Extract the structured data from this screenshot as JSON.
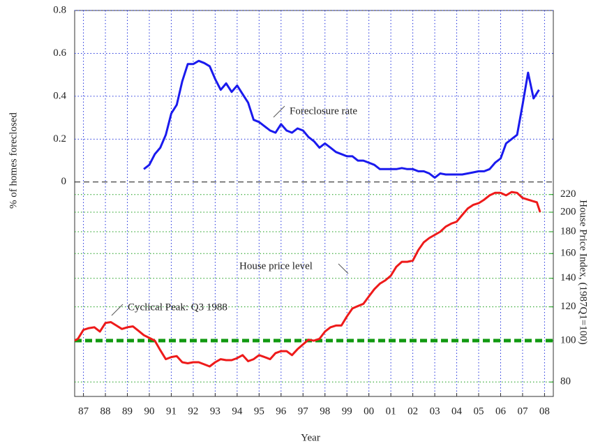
{
  "chart_data": {
    "type": "line",
    "xlabel": "Year",
    "ylabel": "% of homes foreclosed",
    "y2label": "House Price Index, (1987Q1=100)",
    "xlim": [
      1986.6,
      2008.4
    ],
    "xticks": [
      {
        "value": 1987,
        "label": "87"
      },
      {
        "value": 1988,
        "label": "88"
      },
      {
        "value": 1989,
        "label": "89"
      },
      {
        "value": 1990,
        "label": "90"
      },
      {
        "value": 1991,
        "label": "91"
      },
      {
        "value": 1992,
        "label": "92"
      },
      {
        "value": 1993,
        "label": "93"
      },
      {
        "value": 1994,
        "label": "94"
      },
      {
        "value": 1995,
        "label": "95"
      },
      {
        "value": 1996,
        "label": "96"
      },
      {
        "value": 1997,
        "label": "97"
      },
      {
        "value": 1998,
        "label": "98"
      },
      {
        "value": 1999,
        "label": "99"
      },
      {
        "value": 2000,
        "label": "00"
      },
      {
        "value": 2001,
        "label": "01"
      },
      {
        "value": 2002,
        "label": "02"
      },
      {
        "value": 2003,
        "label": "03"
      },
      {
        "value": 2004,
        "label": "04"
      },
      {
        "value": 2005,
        "label": "05"
      },
      {
        "value": 2006,
        "label": "06"
      },
      {
        "value": 2007,
        "label": "07"
      },
      {
        "value": 2008,
        "label": "08"
      }
    ],
    "ylim": [
      -1,
      0.8
    ],
    "yticks": [
      0,
      0.2,
      0.4,
      0.6,
      0.8
    ],
    "y_reference": 0,
    "y2lim": [
      74,
      594
    ],
    "y2ticks": [
      80,
      100,
      120,
      140,
      160,
      180,
      200,
      220
    ],
    "y2_log": true,
    "y2_reference": 100,
    "grid": true,
    "annotations": [
      "Foreclosure rate",
      "House price level",
      "Cyclical Peak: Q3 1988"
    ],
    "series": [
      {
        "name": "Foreclosure rate",
        "color": "#1a1aee",
        "axis": "y",
        "x": [
          1989.75,
          1990,
          1990.25,
          1990.5,
          1990.75,
          1991,
          1991.25,
          1991.5,
          1991.75,
          1992,
          1992.25,
          1992.5,
          1992.75,
          1993,
          1993.25,
          1993.5,
          1993.75,
          1994,
          1994.25,
          1994.5,
          1994.75,
          1995,
          1995.25,
          1995.5,
          1995.75,
          1996,
          1996.25,
          1996.5,
          1996.75,
          1997,
          1997.25,
          1997.5,
          1997.75,
          1998,
          1998.25,
          1998.5,
          1998.75,
          1999,
          1999.25,
          1999.5,
          1999.75,
          2000,
          2000.25,
          2000.5,
          2000.75,
          2001,
          2001.25,
          2001.5,
          2001.75,
          2002,
          2002.25,
          2002.5,
          2002.75,
          2003,
          2003.25,
          2003.5,
          2003.75,
          2004,
          2004.25,
          2004.5,
          2004.75,
          2005,
          2005.25,
          2005.5,
          2005.75,
          2006,
          2006.25,
          2006.5,
          2006.75,
          2007,
          2007.25,
          2007.5,
          2007.75
        ],
        "values": [
          0.06,
          0.08,
          0.13,
          0.16,
          0.22,
          0.32,
          0.36,
          0.47,
          0.55,
          0.55,
          0.565,
          0.555,
          0.54,
          0.48,
          0.43,
          0.46,
          0.42,
          0.45,
          0.41,
          0.37,
          0.29,
          0.28,
          0.26,
          0.24,
          0.23,
          0.27,
          0.24,
          0.23,
          0.25,
          0.24,
          0.21,
          0.19,
          0.16,
          0.18,
          0.16,
          0.14,
          0.13,
          0.12,
          0.12,
          0.1,
          0.1,
          0.09,
          0.08,
          0.06,
          0.06,
          0.06,
          0.06,
          0.065,
          0.06,
          0.06,
          0.05,
          0.05,
          0.04,
          0.02,
          0.04,
          0.035,
          0.035,
          0.035,
          0.035,
          0.04,
          0.045,
          0.05,
          0.05,
          0.06,
          0.09,
          0.11,
          0.18,
          0.2,
          0.22,
          0.36,
          0.51,
          0.39,
          0.43
        ]
      },
      {
        "name": "House price level",
        "color": "#ee1a1a",
        "axis": "y2",
        "x": [
          1986.6,
          1986.75,
          1987,
          1987.25,
          1987.5,
          1987.75,
          1988,
          1988.25,
          1988.5,
          1988.75,
          1989,
          1989.25,
          1989.5,
          1989.75,
          1990,
          1990.25,
          1990.5,
          1990.75,
          1991,
          1991.25,
          1991.5,
          1991.75,
          1992,
          1992.25,
          1992.5,
          1992.75,
          1993,
          1993.25,
          1993.5,
          1993.75,
          1994,
          1994.25,
          1994.5,
          1994.75,
          1995,
          1995.25,
          1995.5,
          1995.75,
          1996,
          1996.25,
          1996.5,
          1996.75,
          1997,
          1997.25,
          1997.5,
          1997.75,
          1998,
          1998.25,
          1998.5,
          1998.75,
          1999,
          1999.25,
          1999.5,
          1999.75,
          2000,
          2000.25,
          2000.5,
          2000.75,
          2001,
          2001.25,
          2001.5,
          2001.75,
          2002,
          2002.25,
          2002.5,
          2002.75,
          2003,
          2003.25,
          2003.5,
          2003.75,
          2004,
          2004.25,
          2004.5,
          2004.75,
          2005,
          2005.25,
          2005.5,
          2005.75,
          2006,
          2006.25,
          2006.5,
          2006.75,
          2007,
          2007.25,
          2007.5,
          2007.65,
          2007.8
        ],
        "values": [
          100,
          101,
          106,
          107,
          107.5,
          105,
          110,
          110.5,
          108.5,
          106.5,
          107.5,
          108,
          105.5,
          103,
          101.5,
          100,
          95,
          90.5,
          91.5,
          92,
          89,
          88.5,
          89,
          89,
          88,
          87,
          89,
          90.5,
          90,
          90,
          91,
          92.5,
          89.5,
          90.5,
          92.5,
          91.5,
          90.5,
          93.5,
          94.5,
          94.5,
          92.5,
          95.5,
          98,
          100.5,
          100,
          101,
          105,
          107.5,
          108.5,
          108.5,
          114,
          119,
          120.5,
          122,
          127,
          132,
          136,
          138.5,
          142,
          149,
          153,
          153,
          154,
          163,
          170,
          174,
          177,
          180,
          185,
          188,
          190,
          197,
          204,
          208,
          210,
          214,
          219,
          222,
          222,
          219,
          223,
          222,
          216,
          214,
          212,
          211,
          200
        ]
      }
    ]
  }
}
